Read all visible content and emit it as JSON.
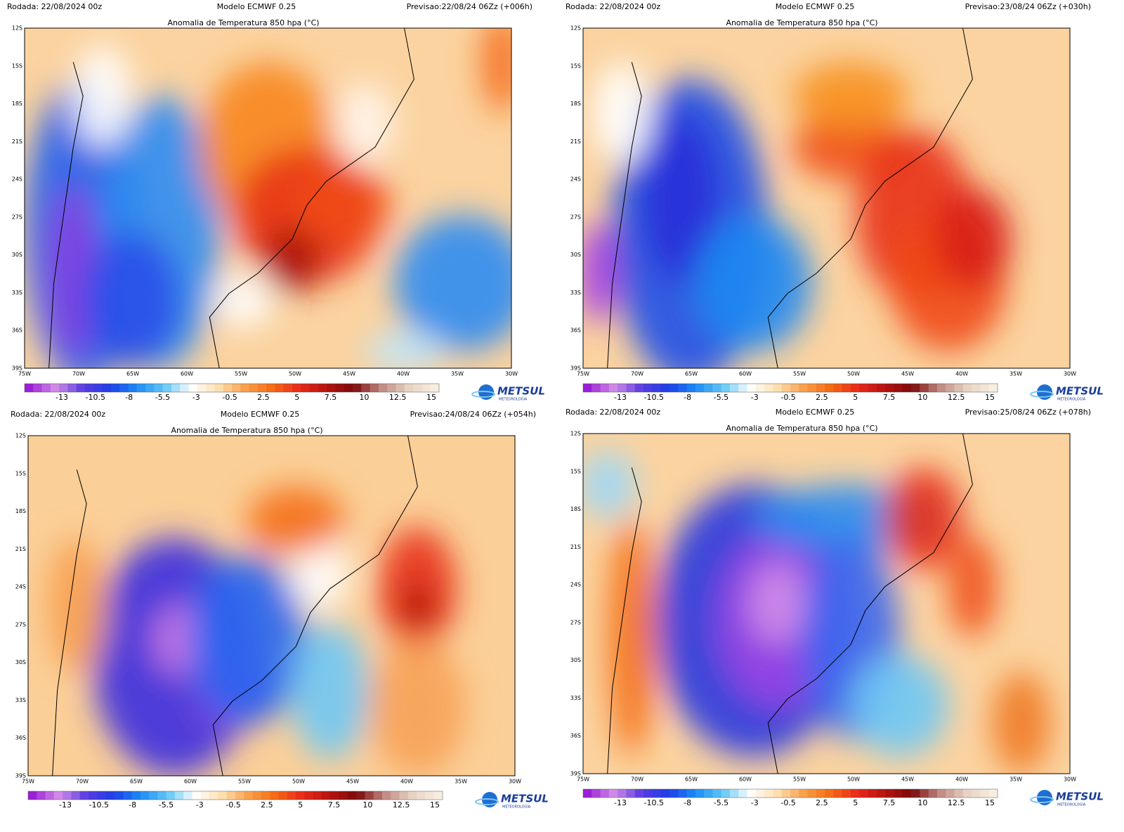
{
  "panels": [
    {
      "run": "Rodada: 22/08/2024 00z",
      "model": "Modelo ECMWF 0.25",
      "forecast": "Previsao:22/08/24 06Zz (+006h)",
      "title": "Anomalia de Temperatura 850 hpa (°C)"
    },
    {
      "run": "Rodada: 22/08/2024 00z",
      "model": "Modelo ECMWF 0.25",
      "forecast": "Previsao:23/08/24 06Zz (+030h)",
      "title": "Anomalia de Temperatura 850 hpa (°C)"
    },
    {
      "run": "Rodada: 22/08/2024 00z",
      "model": "Modelo ECMWF 0.25",
      "forecast": "Previsao:24/08/24 06Zz (+054h)",
      "title": "Anomalia de Temperatura 850 hpa (°C)"
    },
    {
      "run": "Rodada: 22/08/2024 00z",
      "model": "Modelo ECMWF 0.25",
      "forecast": "Previsao:25/08/24 06Zz (+078h)",
      "title": "Anomalia de Temperatura 850 hpa (°C)"
    }
  ],
  "lat_labels": [
    "12S",
    "15S",
    "18S",
    "21S",
    "24S",
    "27S",
    "30S",
    "33S",
    "36S",
    "39S"
  ],
  "lon_labels": [
    "75W",
    "70W",
    "65W",
    "60W",
    "55W",
    "50W",
    "45W",
    "40W",
    "35W",
    "30W"
  ],
  "colorbar_labels": [
    "-13",
    "-10.5",
    "-8",
    "-5.5",
    "-3",
    "-0.5",
    "2.5",
    "5",
    "7.5",
    "10",
    "12.5",
    "15"
  ],
  "logo": "METSUL",
  "logo_sub": "METEOROLOGIA"
}
